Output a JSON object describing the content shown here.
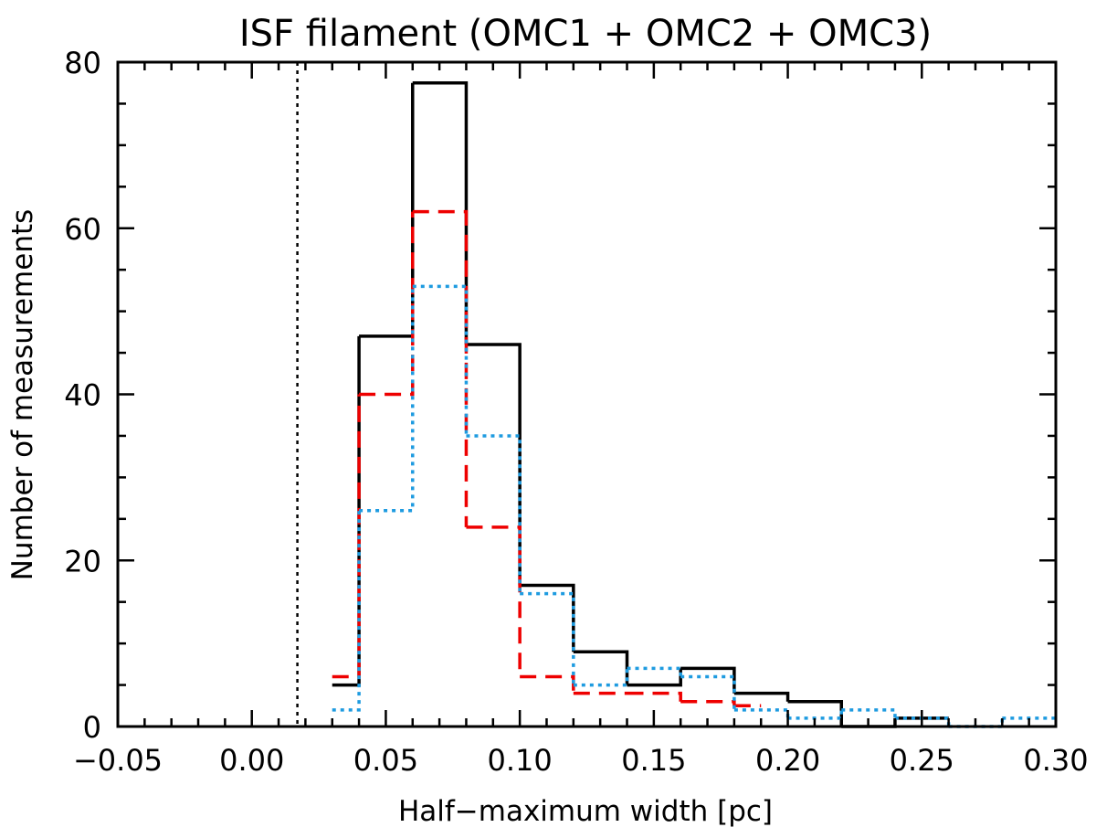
{
  "chart_data": {
    "type": "histogram",
    "title": "ISF filament (OMC1 + OMC2 + OMC3)",
    "xlabel": "Half−maximum width [pc]",
    "ylabel": "Number of measurements",
    "xlim": [
      -0.05,
      0.3
    ],
    "ylim": [
      0,
      80
    ],
    "xticks": [
      -0.05,
      0.0,
      0.05,
      0.1,
      0.15,
      0.2,
      0.25,
      0.3
    ],
    "xtick_labels": [
      "−0.05",
      "0.00",
      "0.05",
      "0.10",
      "0.15",
      "0.20",
      "0.25",
      "0.30"
    ],
    "yticks": [
      0,
      20,
      40,
      60,
      80
    ],
    "ytick_labels": [
      "0",
      "20",
      "40",
      "60",
      "80"
    ],
    "grid": false,
    "series": [
      {
        "style": "solid",
        "color": "#000000",
        "bin_edges": [
          0.03,
          0.04,
          0.06,
          0.08,
          0.1,
          0.12,
          0.14,
          0.16,
          0.18,
          0.2,
          0.22,
          0.24,
          0.26
        ],
        "counts": [
          5,
          47,
          77.5,
          46,
          17,
          9,
          5,
          7,
          4,
          3,
          0,
          1
        ]
      },
      {
        "style": "dashed",
        "color": "#ee0000",
        "bin_edges": [
          0.03,
          0.04,
          0.06,
          0.08,
          0.1,
          0.12,
          0.14,
          0.16,
          0.18,
          0.19
        ],
        "counts": [
          6,
          40,
          62,
          24,
          6,
          4,
          4,
          3,
          2.5
        ]
      },
      {
        "style": "dotted",
        "color": "#1e9be0",
        "bin_edges": [
          0.03,
          0.04,
          0.06,
          0.08,
          0.1,
          0.12,
          0.14,
          0.16,
          0.18,
          0.2,
          0.22,
          0.24,
          0.26,
          0.28,
          0.3
        ],
        "counts": [
          2,
          26,
          53,
          35,
          16,
          5,
          7,
          6,
          2,
          1,
          2,
          1,
          0,
          1
        ]
      }
    ],
    "reference_lines": [
      {
        "x": 0.017,
        "style": "dotted",
        "color": "#000000"
      }
    ]
  }
}
